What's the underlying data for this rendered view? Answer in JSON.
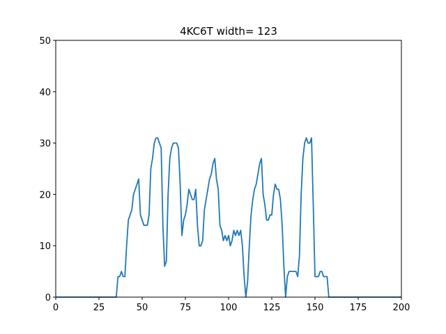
{
  "chart_data": {
    "type": "line",
    "title": "4KC6T width= 123",
    "x": [
      0,
      35,
      36,
      37,
      38,
      39,
      40,
      41,
      42,
      43,
      44,
      45,
      46,
      47,
      48,
      49,
      50,
      51,
      52,
      53,
      54,
      55,
      56,
      57,
      58,
      59,
      60,
      61,
      62,
      63,
      64,
      65,
      66,
      67,
      68,
      69,
      70,
      71,
      72,
      73,
      74,
      75,
      76,
      77,
      78,
      79,
      80,
      81,
      82,
      83,
      84,
      85,
      86,
      87,
      88,
      89,
      90,
      91,
      92,
      93,
      94,
      95,
      96,
      97,
      98,
      99,
      100,
      101,
      102,
      103,
      104,
      105,
      106,
      107,
      108,
      109,
      110,
      111,
      112,
      113,
      114,
      115,
      116,
      117,
      118,
      119,
      120,
      121,
      122,
      123,
      124,
      125,
      126,
      127,
      128,
      129,
      130,
      131,
      132,
      133,
      134,
      135,
      136,
      137,
      138,
      139,
      140,
      141,
      142,
      143,
      144,
      145,
      146,
      147,
      148,
      149,
      150,
      151,
      152,
      153,
      154,
      155,
      156,
      157,
      158,
      200
    ],
    "series": [
      {
        "color": "#1f77b4",
        "values": [
          0,
          0,
          4,
          4,
          5,
          4,
          4,
          10,
          15,
          16,
          17,
          20,
          21,
          22,
          23,
          16,
          15,
          14,
          14,
          14,
          16,
          25,
          27,
          30,
          31,
          31,
          30,
          29,
          14,
          6,
          7,
          20,
          27,
          29,
          30,
          30,
          30,
          29,
          22,
          12,
          15,
          16,
          18,
          21,
          20,
          19,
          19,
          21,
          14,
          10,
          10,
          11,
          17,
          19,
          21,
          23,
          24,
          26,
          27,
          23,
          21,
          14,
          13,
          11,
          12,
          11,
          12,
          10,
          11,
          13,
          12,
          13,
          12,
          13,
          10,
          4,
          0,
          3,
          10,
          16,
          19,
          21,
          22,
          24,
          26,
          27,
          20,
          18,
          15,
          15,
          16,
          16,
          20,
          22,
          21,
          21,
          19,
          14,
          6,
          0,
          4,
          5,
          5,
          5,
          5,
          5,
          4,
          8,
          20,
          27,
          30,
          31,
          30,
          30,
          31,
          18,
          4,
          4,
          4,
          5,
          5,
          4,
          4,
          4,
          0,
          0
        ]
      }
    ],
    "xlim": [
      0,
      200
    ],
    "xticks": [
      0,
      25,
      50,
      75,
      100,
      125,
      150,
      175,
      200
    ],
    "ylim": [
      0,
      50
    ],
    "yticks": [
      0,
      10,
      20,
      30,
      40,
      50
    ]
  }
}
